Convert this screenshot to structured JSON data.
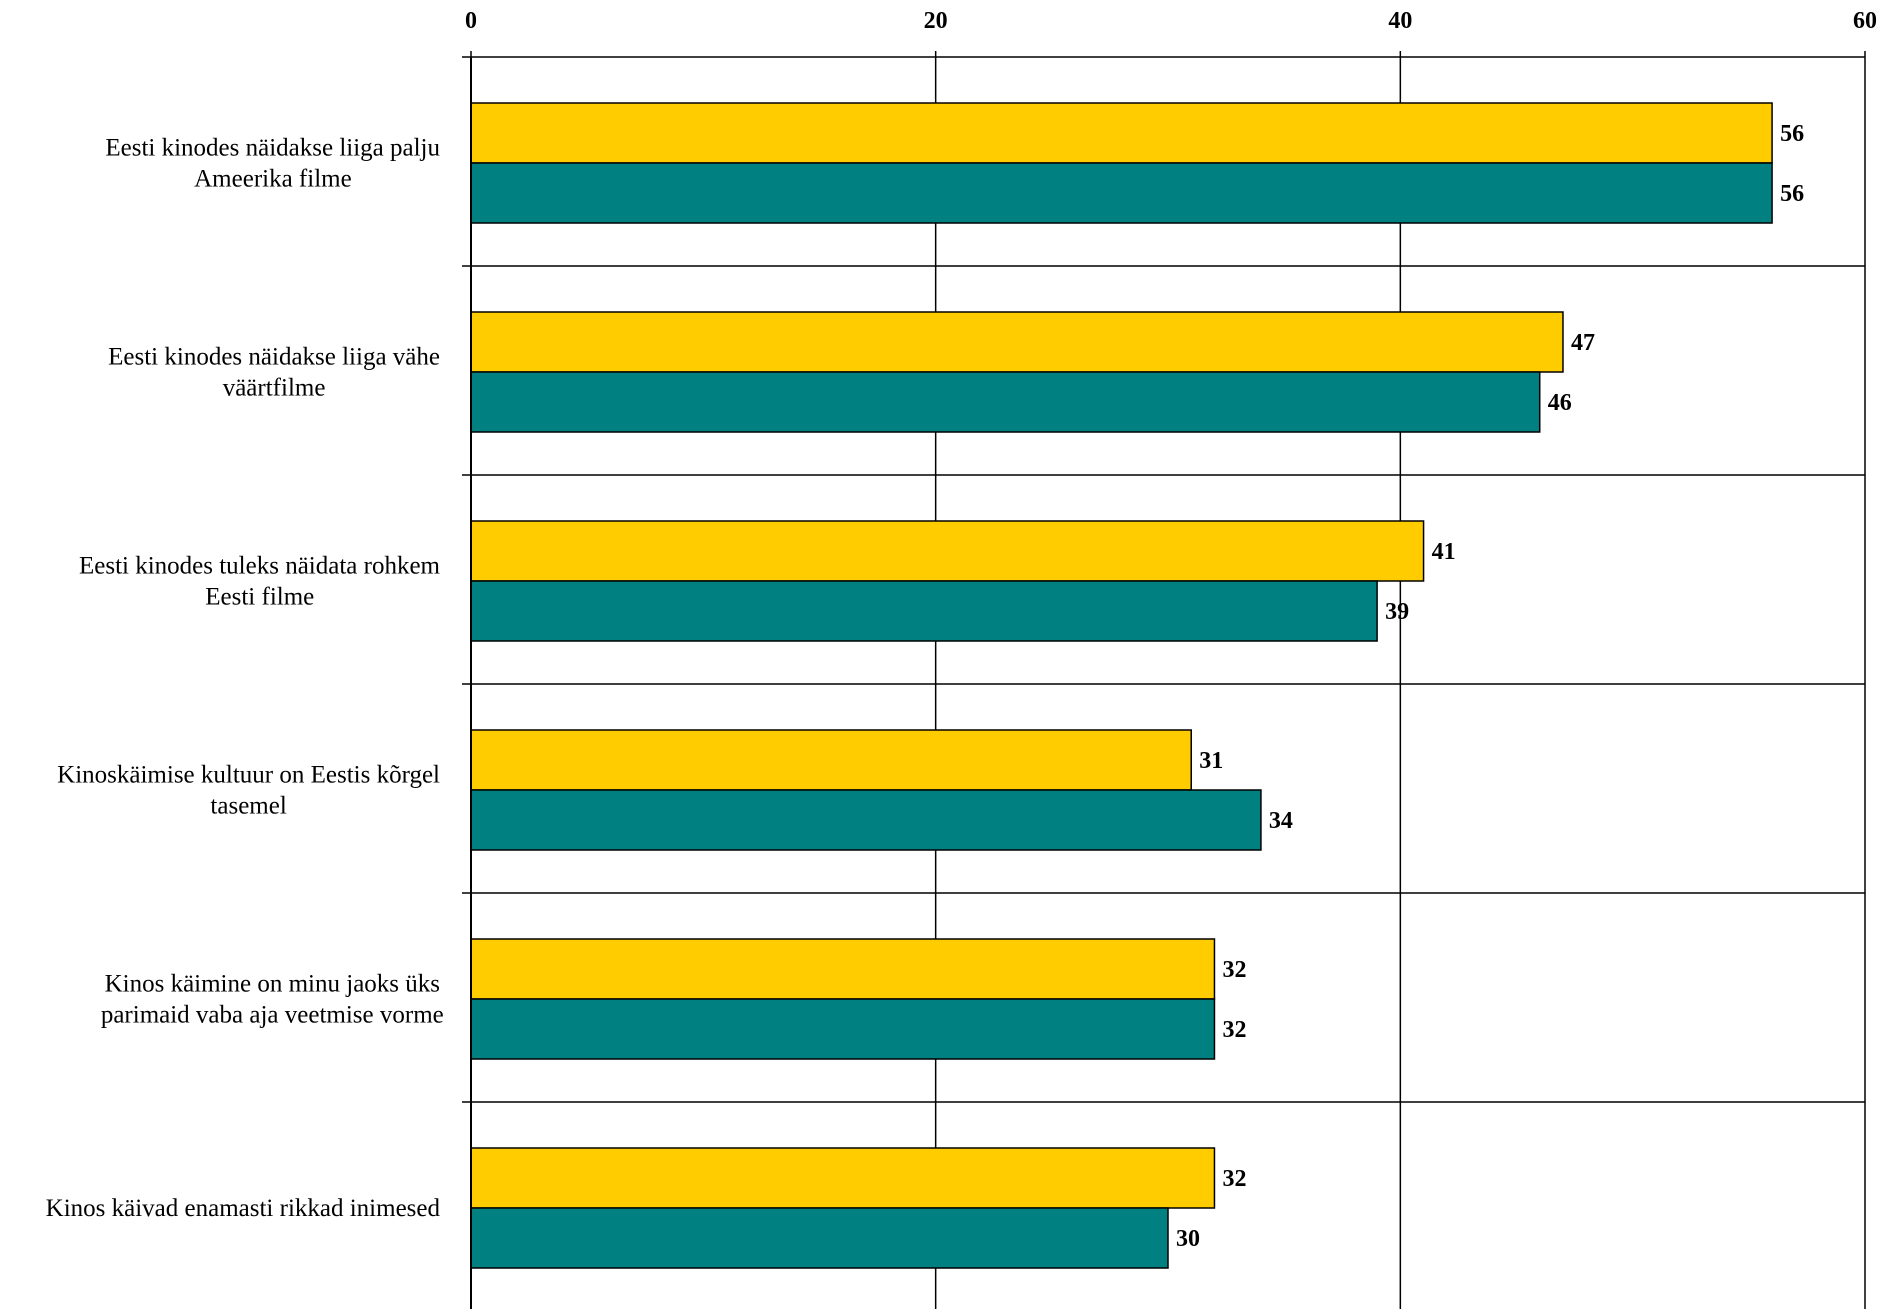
{
  "chart_data": {
    "type": "bar",
    "orientation": "horizontal",
    "title": "",
    "xlabel": "",
    "ylabel": "",
    "xlim": [
      0,
      60
    ],
    "x_ticks": [
      "0",
      "20",
      "40",
      "60"
    ],
    "x_axis_position": "top",
    "grid": true,
    "legend": "none",
    "categories": [
      [
        "Eesti kinodes näidakse liiga palju",
        "Ameerika filme"
      ],
      [
        "Eesti kinodes näidakse liiga vähe",
        "väärtfilme"
      ],
      [
        "Eesti kinodes tuleks näidata rohkem",
        "Eesti filme"
      ],
      [
        "Kinoskäimise kultuur on Eestis kõrgel",
        "tasemel"
      ],
      [
        "Kinos käimine on minu jaoks üks",
        "parimaid vaba aja veetmise vorme"
      ],
      [
        "Kinos käivad enamasti rikkad inimesed"
      ]
    ],
    "series": [
      {
        "values": [
          56,
          47,
          41,
          31,
          32,
          32
        ],
        "color": "#FFCC00"
      },
      {
        "values": [
          56,
          46,
          39,
          34,
          32,
          30
        ],
        "color": "#008080"
      }
    ]
  }
}
